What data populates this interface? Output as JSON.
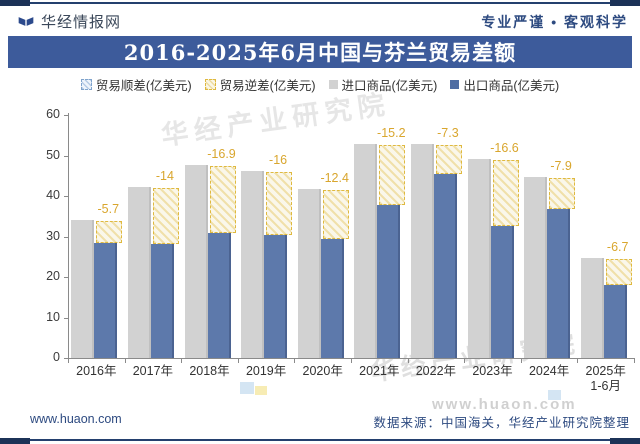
{
  "header": {
    "brand": "华经情报网",
    "slogan": "专业严谨 • 客观科学"
  },
  "title": "2016-2025年6月中国与芬兰贸易差额",
  "legend": {
    "items": [
      {
        "label": "贸易顺差(亿美元)",
        "type": "surplus"
      },
      {
        "label": "贸易逆差(亿美元)",
        "type": "deficit"
      },
      {
        "label": "进口商品(亿美元)",
        "type": "import"
      },
      {
        "label": "出口商品(亿美元)",
        "type": "export"
      }
    ]
  },
  "chart_data": {
    "type": "bar",
    "categories": [
      "2016年",
      "2017年",
      "2018年",
      "2019年",
      "2020年",
      "2021年",
      "2022年",
      "2023年",
      "2024年",
      "2025年\n1-6月"
    ],
    "series": [
      {
        "name": "贸易顺差(亿美元)",
        "values": [
          null,
          null,
          null,
          null,
          null,
          null,
          null,
          null,
          null,
          null
        ]
      },
      {
        "name": "贸易逆差(亿美元)",
        "values": [
          5.7,
          14,
          16.9,
          16,
          12.4,
          15.2,
          7.3,
          16.6,
          7.9,
          6.7
        ]
      },
      {
        "name": "进口商品(亿美元)",
        "values": [
          34.2,
          42.2,
          47.7,
          46.3,
          41.7,
          52.9,
          52.8,
          49.2,
          44.8,
          24.7
        ]
      },
      {
        "name": "出口商品(亿美元)",
        "values": [
          28.5,
          28.2,
          30.8,
          30.3,
          29.3,
          37.7,
          45.5,
          32.6,
          36.9,
          18
        ]
      }
    ],
    "balance_labels": [
      "-5.7",
      "-14",
      "-16.9",
      "-16",
      "-12.4",
      "-15.2",
      "-7.3",
      "-16.6",
      "-7.9",
      "-6.7"
    ],
    "title": "2016-2025年6月中国与芬兰贸易差额",
    "xlabel": "",
    "ylabel": "",
    "ylim": [
      0,
      60
    ],
    "yticks": [
      0,
      10,
      20,
      30,
      40,
      50,
      60
    ],
    "grid": false,
    "legend_position": "top"
  },
  "watermark": {
    "text1": "华经产业研究院",
    "text2": "华经产业研究院",
    "url": "www.huaon.com"
  },
  "footer": {
    "site": "www.huaon.com",
    "source": "数据来源：中国海关，华经产业研究院整理"
  },
  "colors": {
    "title_bar": "#3d5b9b",
    "border": "#24406e",
    "import_bar": "#d2d2d2",
    "export_bar": "#5d79ab",
    "deficit_dash": "#dfb93f",
    "deficit_label": "#d9a62e",
    "footer_text": "#2d4a80"
  }
}
